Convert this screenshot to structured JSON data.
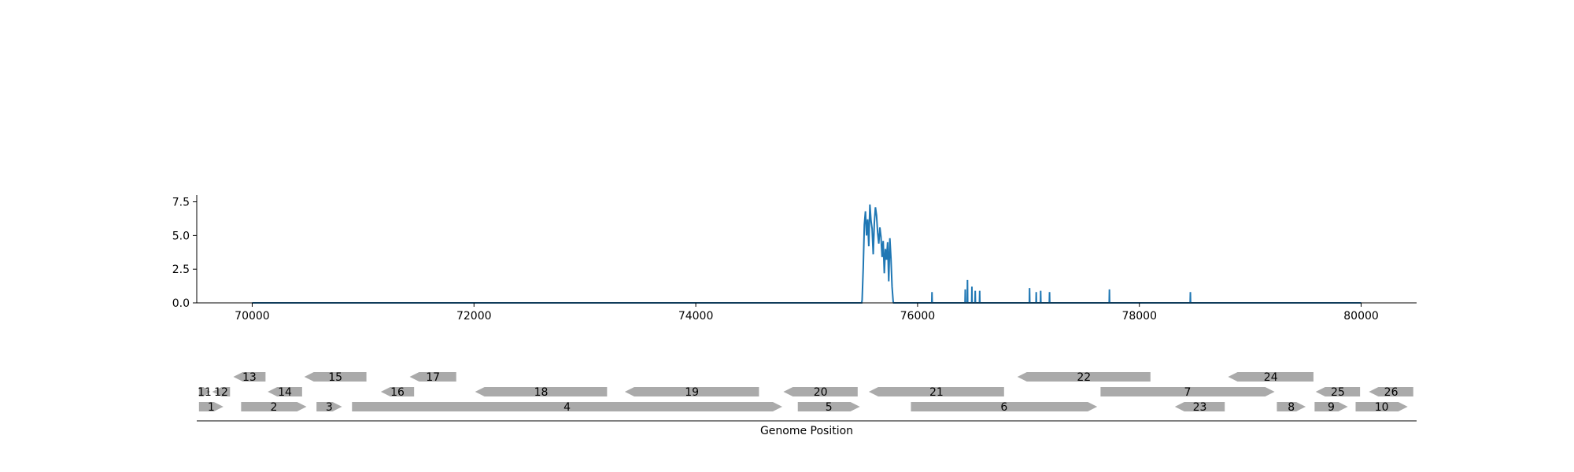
{
  "chart_data": [
    {
      "type": "line",
      "title": "",
      "xlabel": "",
      "ylabel": "",
      "xlim": [
        69500,
        80500
      ],
      "ylim": [
        0,
        8.0
      ],
      "xticks": [
        70000,
        72000,
        74000,
        76000,
        78000,
        80000
      ],
      "yticks": [
        0.0,
        2.5,
        5.0,
        7.5
      ],
      "ytick_labels": [
        "0.0",
        "2.5",
        "5.0",
        "7.5"
      ],
      "line_color": "#1f77b4",
      "x_start": 70000,
      "x_end": 80000,
      "cluster": {
        "x": [
          75500,
          75510,
          75520,
          75530,
          75540,
          75550,
          75560,
          75570,
          75580,
          75590,
          75600,
          75610,
          75620,
          75630,
          75640,
          75650,
          75660,
          75670,
          75680,
          75690,
          75700,
          75710,
          75720,
          75730,
          75740,
          75750,
          75760,
          75770,
          75780
        ],
        "y": [
          0.2,
          2.6,
          5.8,
          6.8,
          5.0,
          6.2,
          4.2,
          7.3,
          6.1,
          5.5,
          3.6,
          5.9,
          7.1,
          6.5,
          5.2,
          4.4,
          5.6,
          4.9,
          3.4,
          4.6,
          2.2,
          4.0,
          3.2,
          4.5,
          1.6,
          4.8,
          3.3,
          1.2,
          0.1
        ]
      },
      "spikes": [
        {
          "x": 76130,
          "y": 0.8
        },
        {
          "x": 76430,
          "y": 1.0
        },
        {
          "x": 76450,
          "y": 1.7
        },
        {
          "x": 76490,
          "y": 1.2
        },
        {
          "x": 76520,
          "y": 0.9
        },
        {
          "x": 76560,
          "y": 0.9
        },
        {
          "x": 77010,
          "y": 1.1
        },
        {
          "x": 77070,
          "y": 0.8
        },
        {
          "x": 77110,
          "y": 0.9
        },
        {
          "x": 77190,
          "y": 0.8
        },
        {
          "x": 77730,
          "y": 1.0
        },
        {
          "x": 78460,
          "y": 0.8
        }
      ]
    },
    {
      "type": "gene-track",
      "xlabel": "Genome Position",
      "xlim": [
        69500,
        80500
      ],
      "gene_color": "#aaaaaa",
      "genes": [
        {
          "label": "1",
          "start": 69520,
          "end": 69740,
          "strand": "+",
          "row": 0
        },
        {
          "label": "2",
          "start": 69900,
          "end": 70490,
          "strand": "+",
          "row": 0
        },
        {
          "label": "3",
          "start": 70580,
          "end": 70810,
          "strand": "+",
          "row": 0
        },
        {
          "label": "4",
          "start": 70900,
          "end": 74780,
          "strand": "+",
          "row": 0
        },
        {
          "label": "5",
          "start": 74920,
          "end": 75480,
          "strand": "+",
          "row": 0
        },
        {
          "label": "6",
          "start": 75940,
          "end": 77620,
          "strand": "+",
          "row": 0
        },
        {
          "label": "23",
          "start": 78320,
          "end": 78770,
          "strand": "-",
          "row": 0
        },
        {
          "label": "8",
          "start": 79240,
          "end": 79500,
          "strand": "+",
          "row": 0
        },
        {
          "label": "9",
          "start": 79580,
          "end": 79880,
          "strand": "+",
          "row": 0
        },
        {
          "label": "10",
          "start": 79950,
          "end": 80420,
          "strand": "+",
          "row": 0
        },
        {
          "label": "11",
          "start": 69520,
          "end": 69620,
          "strand": "+",
          "row": 1
        },
        {
          "label": "12",
          "start": 69640,
          "end": 69800,
          "strand": "-",
          "row": 1
        },
        {
          "label": "14",
          "start": 70140,
          "end": 70450,
          "strand": "-",
          "row": 1
        },
        {
          "label": "16",
          "start": 71160,
          "end": 71460,
          "strand": "-",
          "row": 1
        },
        {
          "label": "18",
          "start": 72010,
          "end": 73200,
          "strand": "-",
          "row": 1
        },
        {
          "label": "19",
          "start": 73360,
          "end": 74570,
          "strand": "-",
          "row": 1
        },
        {
          "label": "20",
          "start": 74790,
          "end": 75460,
          "strand": "-",
          "row": 1
        },
        {
          "label": "21",
          "start": 75560,
          "end": 76780,
          "strand": "-",
          "row": 1
        },
        {
          "label": "7",
          "start": 77650,
          "end": 79220,
          "strand": "+",
          "row": 1
        },
        {
          "label": "25",
          "start": 79590,
          "end": 79990,
          "strand": "-",
          "row": 1
        },
        {
          "label": "26",
          "start": 80070,
          "end": 80470,
          "strand": "-",
          "row": 1
        },
        {
          "label": "13",
          "start": 69830,
          "end": 70120,
          "strand": "-",
          "row": 2
        },
        {
          "label": "15",
          "start": 70470,
          "end": 71030,
          "strand": "-",
          "row": 2
        },
        {
          "label": "17",
          "start": 71420,
          "end": 71840,
          "strand": "-",
          "row": 2
        },
        {
          "label": "22",
          "start": 76900,
          "end": 78100,
          "strand": "-",
          "row": 2
        },
        {
          "label": "24",
          "start": 78800,
          "end": 79570,
          "strand": "-",
          "row": 2
        }
      ]
    }
  ]
}
